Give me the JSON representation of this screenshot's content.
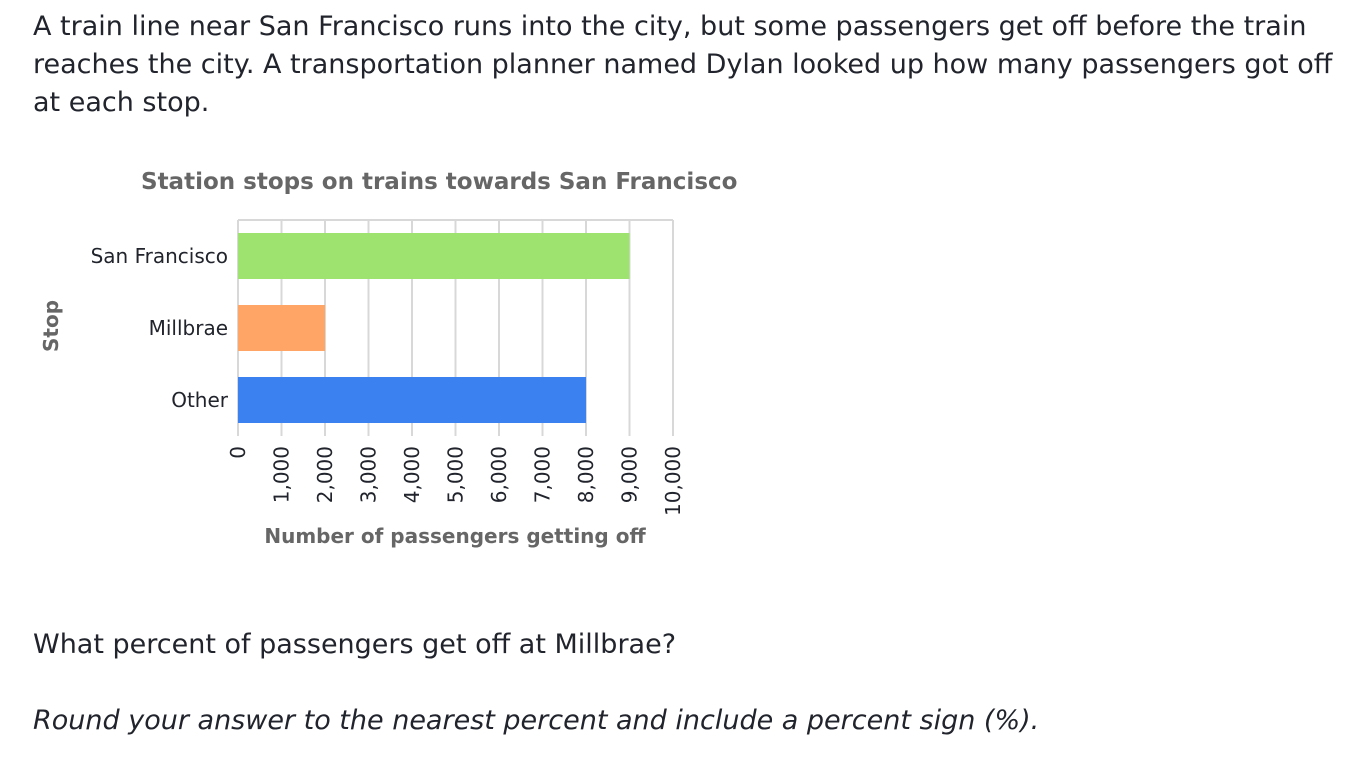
{
  "intro_text": "A train line near San Francisco runs into the city, but some passengers get off before the train reaches the city. A transportation planner named Dylan looked up how many passengers got off at each stop.",
  "question_text": "What percent of passengers get off at Millbrae?",
  "instruction_text": "Round your answer to the nearest percent and include a percent sign (%).",
  "chart_data": {
    "type": "bar",
    "orientation": "horizontal",
    "title": "Station stops on trains towards San Francisco",
    "xlabel": "Number of passengers getting off",
    "ylabel": "Stop",
    "categories": [
      "San Francisco",
      "Millbrae",
      "Other"
    ],
    "values": [
      9000,
      2000,
      8000
    ],
    "colors": [
      "#9ee270",
      "#ffa566",
      "#3b82f0"
    ],
    "xlim": [
      0,
      10000
    ],
    "ticks": [
      0,
      1000,
      2000,
      3000,
      4000,
      5000,
      6000,
      7000,
      8000,
      9000,
      10000
    ],
    "tick_labels": [
      "0",
      "1,000",
      "2,000",
      "3,000",
      "4,000",
      "5,000",
      "6,000",
      "7,000",
      "8,000",
      "9,000",
      "10,000"
    ],
    "grid": true,
    "grid_color": "#d8d8d8"
  }
}
